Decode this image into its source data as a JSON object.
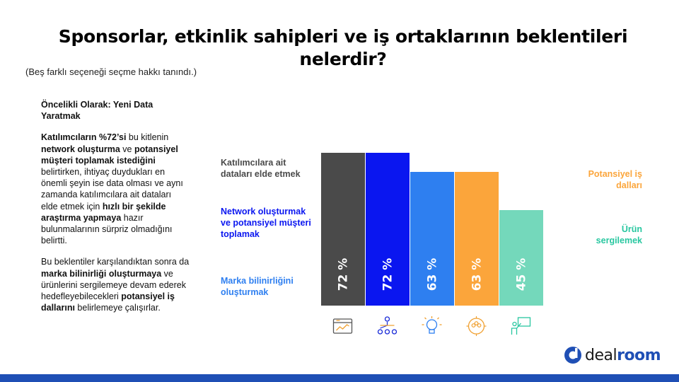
{
  "header": {
    "title": "Sponsorlar, etkinlik sahipleri ve iş ortaklarının beklentileri nelerdir?",
    "subtitle": "(Beş farklı seçeneği seçme hakkı tanındı.)"
  },
  "left_text": {
    "heading": "Öncelikli Olarak:  Yeni Data Yaratmak",
    "p1": [
      {
        "t": "Katılımcıların %72’si",
        "b": true
      },
      {
        "t": " bu kitlenin ",
        "b": false
      },
      {
        "t": "network oluşturma",
        "b": true
      },
      {
        "t": " ve ",
        "b": false
      },
      {
        "t": "potansiyel müşteri toplamak istediğini",
        "b": true
      },
      {
        "t": " belirtirken, ihtiyaç duydukları en önemli şeyin ise data olması ve aynı zamanda katılımcılara ait dataları elde etmek için ",
        "b": false
      },
      {
        "t": "hızlı bir şekilde araştırma yapmaya",
        "b": true
      },
      {
        "t": " hazır bulunmalarının sürpriz olmadığını belirtti.",
        "b": false
      }
    ],
    "p2": [
      {
        "t": "Bu beklentiler karşılandıktan sonra da ",
        "b": false
      },
      {
        "t": "marka bilinirliği oluşturmaya",
        "b": true
      },
      {
        "t": " ve ürünlerini sergilemeye devam ederek hedefleyebilecekleri ",
        "b": false
      },
      {
        "t": "potansiyel iş dallarını",
        "b": true
      },
      {
        "t": " belirlemeye çalışırlar.",
        "b": false
      }
    ]
  },
  "legend_labels": {
    "data": "Katılımcılara ait dataları elde etmek",
    "network": "Network oluşturmak ve potansiyel müşteri toplamak",
    "brand": "Marka bilinirliğini oluşturmak",
    "business": "Potansiyel iş dalları",
    "product": "Ürün sergilemek"
  },
  "chart_data": {
    "type": "bar",
    "categories": [
      "Katılımcılara ait dataları elde etmek",
      "Network oluşturmak ve potansiyel müşteri toplamak",
      "Marka bilinirliğini oluşturmak",
      "Potansiyel iş dalları",
      "Ürün sergilemek"
    ],
    "values": [
      72,
      72,
      63,
      63,
      45
    ],
    "value_labels": [
      "72 %",
      "72 %",
      "63 %",
      "63 %",
      "45 %"
    ],
    "colors": [
      "#4a4a4a",
      "#0a16f0",
      "#2e7ff0",
      "#fba53b",
      "#74d8bb"
    ],
    "icons": [
      "chart-board-icon",
      "network-people-icon",
      "lightbulb-icon",
      "target-group-icon",
      "presentation-icon"
    ],
    "ylim": [
      0,
      72
    ],
    "grid": false,
    "legend_position": "side-labels"
  },
  "logo": {
    "word1": "deal",
    "word2": "room"
  }
}
